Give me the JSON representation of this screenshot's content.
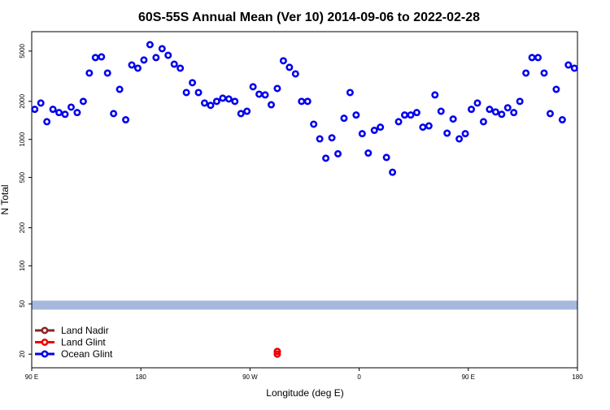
{
  "chart_data": {
    "type": "scatter",
    "title": "60S-55S Annual Mean (Ver 10)   2014-09-06 to 2022-02-28",
    "x_label": "Longitude (deg E)",
    "y_label": "N Total",
    "log_y": true,
    "xlim": [
      90,
      540
    ],
    "ylim": [
      15.6,
      7120
    ],
    "xticks": [
      {
        "value": 90,
        "label": "90 E"
      },
      180,
      {
        "value": 270,
        "label": "90 W"
      },
      {
        "value": 360,
        "label": "0"
      },
      {
        "value": 450,
        "label": "90 E"
      },
      {
        "value": 540,
        "label": "180"
      }
    ],
    "yticks": [
      20,
      50,
      100,
      200,
      500,
      1000,
      2000,
      5000
    ],
    "band": {
      "ylim": [
        45,
        53
      ],
      "color": "#a6b8dd"
    },
    "legend": "bottom-left",
    "series": [
      {
        "name": "Land Nadir",
        "color": "#8b2323",
        "x": [
          292.5
        ],
        "values": [
          21
        ]
      },
      {
        "name": "Land Glint",
        "color": "#ee0000",
        "x": [
          292.5,
          292.5
        ],
        "values": [
          21,
          20
        ]
      },
      {
        "name": "Ocean Glint",
        "color": "#0000ee",
        "x": [
          92.5,
          97.5,
          102.5,
          107.5,
          112.5,
          117.5,
          122.5,
          127.5,
          132.5,
          137.5,
          142.5,
          147.5,
          152.5,
          157.5,
          162.5,
          167.5,
          172.5,
          177.5,
          182.5,
          187.5,
          192.5,
          197.5,
          202.5,
          207.5,
          212.5,
          217.5,
          222.5,
          227.5,
          232.5,
          237.5,
          242.5,
          247.5,
          252.5,
          257.5,
          262.5,
          267.5,
          272.5,
          277.5,
          282.5,
          287.5,
          292.5,
          297.5,
          302.5,
          307.5,
          312.5,
          317.5,
          322.5,
          327.5,
          332.5,
          337.5,
          342.5,
          347.5,
          352.5,
          357.5,
          362.5,
          367.5,
          372.5,
          377.5,
          382.5,
          387.5,
          392.5,
          397.5,
          402.5,
          407.5,
          412.5,
          417.5,
          422.5,
          427.5,
          432.5,
          437.5,
          442.5,
          447.5,
          452.5,
          457.5,
          462.5,
          467.5,
          472.5,
          477.5,
          482.5,
          487.5,
          492.5,
          497.5,
          502.5,
          507.5,
          512.5,
          517.5,
          522.5,
          527.5,
          532.5,
          537.5
        ],
        "values": [
          1730,
          1940,
          1380,
          1730,
          1630,
          1580,
          1800,
          1630,
          2000,
          3350,
          4440,
          4500,
          3350,
          1600,
          2490,
          1430,
          3880,
          3660,
          4250,
          5620,
          4440,
          5220,
          4630,
          3940,
          3660,
          2350,
          2810,
          2350,
          1940,
          1860,
          2000,
          2120,
          2090,
          2000,
          1600,
          1670,
          2610,
          2280,
          2250,
          1880,
          2530,
          4190,
          3720,
          3300,
          2000,
          2000,
          1320,
          1010,
          710,
          1030,
          770,
          1470,
          2350,
          1560,
          1110,
          780,
          1180,
          1250,
          720,
          550,
          1380,
          1560,
          1560,
          1630,
          1250,
          1280,
          2250,
          1670,
          1120,
          1450,
          1010,
          1110,
          1730,
          1940,
          1380,
          1730,
          1650,
          1580,
          1780,
          1630,
          2000,
          3350,
          4440,
          4440,
          3350,
          1600,
          2490,
          1430,
          3880,
          3660
        ]
      }
    ]
  }
}
